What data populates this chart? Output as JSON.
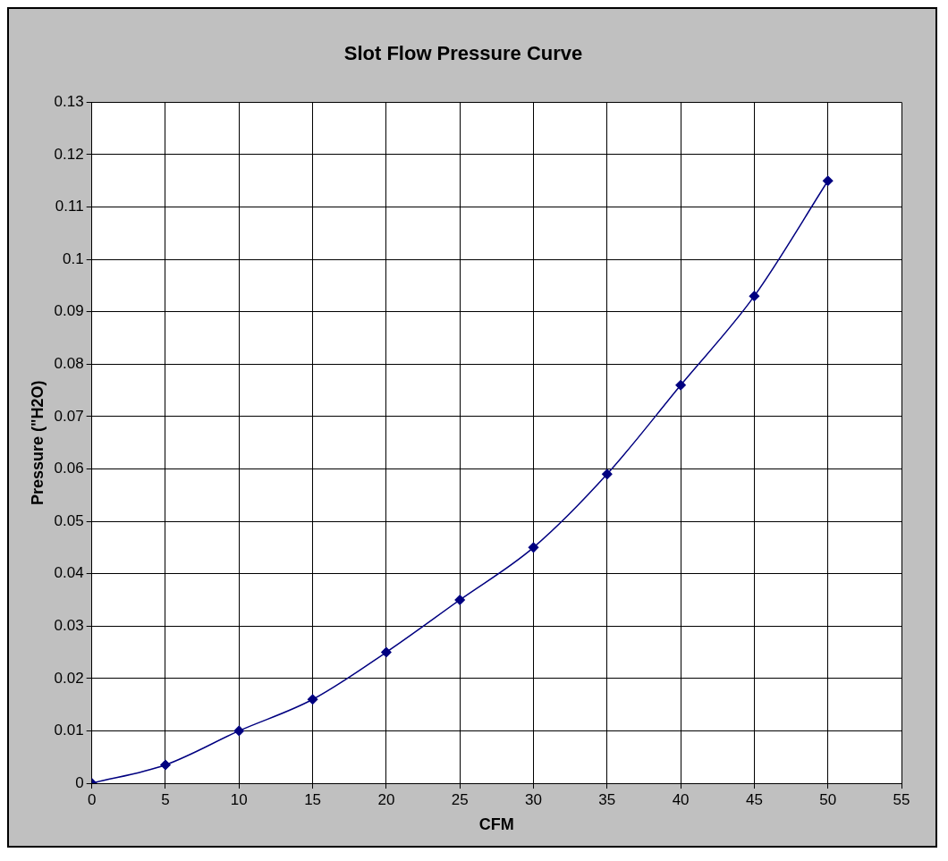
{
  "chart_data": {
    "type": "line",
    "title": "Slot Flow Pressure Curve",
    "xlabel": "CFM",
    "ylabel": "Pressure (\"H2O)",
    "x": [
      0,
      5,
      10,
      15,
      20,
      25,
      30,
      35,
      40,
      45,
      50
    ],
    "series": [
      {
        "color": "#000080",
        "values": [
          0,
          0.0035,
          0.01,
          0.016,
          0.025,
          0.035,
          0.045,
          0.059,
          0.076,
          0.093,
          0.115
        ]
      }
    ],
    "xlim": [
      0,
      55
    ],
    "xticks": [
      0,
      5,
      10,
      15,
      20,
      25,
      30,
      35,
      40,
      45,
      50,
      55
    ],
    "ylim": [
      0,
      0.13
    ],
    "yticks": [
      0,
      0.01,
      0.02,
      0.03,
      0.04,
      0.05,
      0.06,
      0.07,
      0.08,
      0.09,
      0.1,
      0.11,
      0.12,
      0.13
    ],
    "grid": true,
    "legend": false,
    "marker": "diamond",
    "line_style": "solid"
  }
}
